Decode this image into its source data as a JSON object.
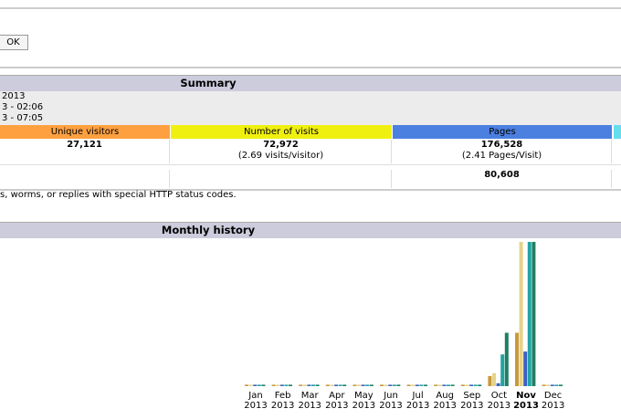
{
  "form": {
    "button": "OK"
  },
  "summary": {
    "title": "Summary",
    "period": [
      "2013",
      "3 - 02:06",
      "3 - 07:05"
    ],
    "columns": [
      "Unique visitors",
      "Number of visits",
      "Pages"
    ],
    "row1": [
      [
        "27,121"
      ],
      [
        "72,972",
        "(2.69 visits/visitor)"
      ],
      [
        "176,528",
        "(2.41 Pages/Visit)"
      ]
    ],
    "row2": [
      [],
      [],
      [
        "80,608"
      ]
    ],
    "note": "s, worms, or replies with special HTTP status codes."
  },
  "chart_data": {
    "type": "bar",
    "title": "Monthly history",
    "categories": [
      "Jan",
      "Feb",
      "Mar",
      "Apr",
      "May",
      "Jun",
      "Jul",
      "Aug",
      "Sep",
      "Oct",
      "Nov",
      "Dec"
    ],
    "years": [
      "2013",
      "2013",
      "2013",
      "2013",
      "2013",
      "2013",
      "2013",
      "2013",
      "2013",
      "2013",
      "2013",
      "2013"
    ],
    "current": 10,
    "ylim": [
      0,
      100
    ],
    "series": [
      {
        "color": "#c89a3c",
        "values": [
          1,
          1,
          1,
          1,
          1,
          1,
          1,
          1,
          1,
          7,
          37,
          1
        ]
      },
      {
        "color": "#e6d38a",
        "values": [
          1,
          1,
          1,
          1,
          1,
          1,
          1,
          1,
          1,
          9,
          100,
          1
        ]
      },
      {
        "color": "#3a62c4",
        "values": [
          1,
          1,
          1,
          1,
          1,
          1,
          1,
          1,
          1,
          2,
          24,
          1
        ]
      },
      {
        "color": "#22a3a3",
        "values": [
          1,
          1,
          1,
          1,
          1,
          1,
          1,
          1,
          1,
          22,
          100,
          1
        ]
      },
      {
        "color": "#1f7f64",
        "values": [
          1,
          1,
          1,
          1,
          1,
          1,
          1,
          1,
          1,
          37,
          100,
          1
        ]
      }
    ]
  }
}
